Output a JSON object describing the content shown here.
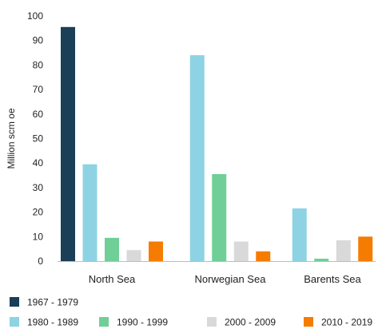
{
  "chart_data": {
    "type": "bar",
    "categories": [
      "North Sea",
      "Norwegian Sea",
      "Barents Sea"
    ],
    "series": [
      {
        "name": "1967 - 1979",
        "color": "#1b3f57",
        "values": [
          95.5,
          null,
          null
        ]
      },
      {
        "name": "1980 - 1989",
        "color": "#8dd3e4",
        "values": [
          39.5,
          84,
          21.5
        ]
      },
      {
        "name": "1990 - 1999",
        "color": "#6fcf97",
        "values": [
          9.5,
          35.5,
          1
        ]
      },
      {
        "name": "2000 - 2009",
        "color": "#d9d9d9",
        "values": [
          4.5,
          8,
          8.5
        ]
      },
      {
        "name": "2010 - 2019",
        "color": "#f57c00",
        "values": [
          8,
          4,
          10
        ]
      }
    ],
    "ylabel": "Million scm oe",
    "ylim": [
      0,
      100
    ],
    "yticks": [
      0,
      10,
      20,
      30,
      40,
      50,
      60,
      70,
      80,
      90,
      100
    ],
    "grid": false,
    "legend_position": "bottom"
  }
}
